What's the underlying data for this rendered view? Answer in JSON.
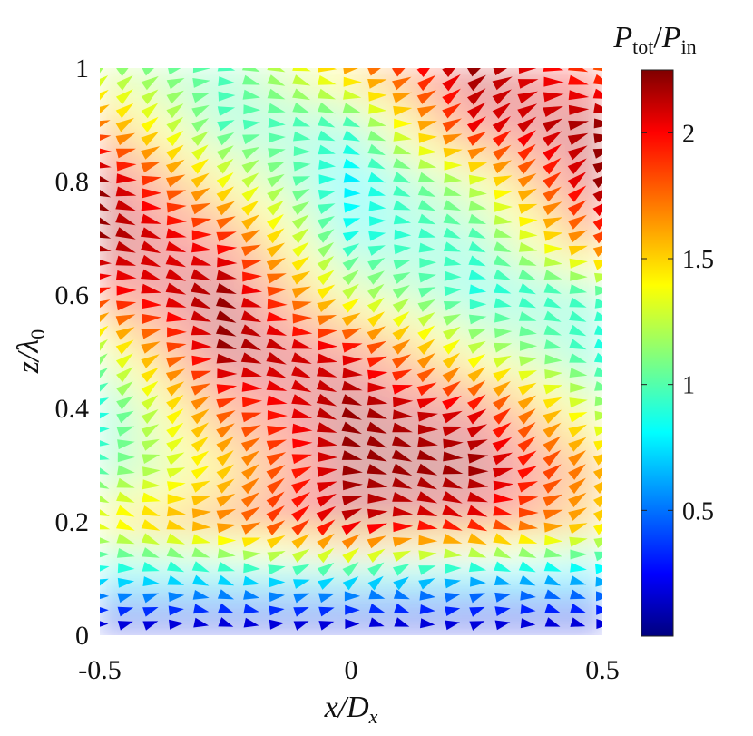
{
  "chart_data": {
    "type": "quiver",
    "xlabel": {
      "main": "x/D",
      "sub": "x"
    },
    "ylabel": {
      "main": "z/λ",
      "sub": "0"
    },
    "colorbar_label": {
      "num": "P",
      "num_sub": "tot",
      "sep": "/",
      "den": "P",
      "den_sub": "in"
    },
    "xlim": [
      -0.5,
      0.5
    ],
    "ylim": [
      0,
      1
    ],
    "xticks": [
      -0.5,
      0,
      0.5
    ],
    "xtick_labels": [
      "-0.5",
      "0",
      "0.5"
    ],
    "yticks": [
      0,
      0.2,
      0.4,
      0.6,
      0.8,
      1
    ],
    "ytick_labels": [
      "0",
      "0.2",
      "0.4",
      "0.6",
      "0.8",
      "1"
    ],
    "colorbar_range": [
      0,
      2.25
    ],
    "colorbar_ticks": [
      0.5,
      1,
      1.5,
      2
    ],
    "colorbar_tick_labels": [
      "0.5",
      "1",
      "1.5",
      "2"
    ],
    "colormap": "jet",
    "grid": false,
    "field_description": "Total power flow normalized to incident power; high-power bands run diagonally from upper-left to lower-right, near-zero power at z≈0.",
    "samples": {
      "x": [
        -0.5,
        -0.25,
        0,
        0.25,
        0.5
      ],
      "z": [
        0.02,
        0.1,
        0.2,
        0.3,
        0.4,
        0.5,
        0.6,
        0.7,
        0.8,
        0.9,
        1.0
      ],
      "value": [
        [
          0.2,
          0.2,
          0.2,
          0.2,
          0.2
        ],
        [
          0.8,
          0.8,
          0.8,
          0.7,
          0.7
        ],
        [
          1.4,
          1.7,
          2.1,
          2.0,
          1.5
        ],
        [
          1.0,
          1.5,
          2.2,
          2.2,
          1.6
        ],
        [
          0.9,
          1.8,
          2.2,
          2.0,
          1.2
        ],
        [
          1.2,
          2.2,
          2.0,
          1.3,
          0.9
        ],
        [
          1.9,
          2.2,
          1.3,
          0.9,
          1.0
        ],
        [
          2.2,
          1.9,
          0.9,
          1.0,
          1.8
        ],
        [
          2.2,
          1.4,
          0.8,
          1.3,
          2.2
        ],
        [
          1.7,
          1.0,
          1.0,
          2.0,
          2.2
        ],
        [
          1.2,
          1.0,
          1.6,
          2.2,
          1.8
        ]
      ]
    }
  }
}
